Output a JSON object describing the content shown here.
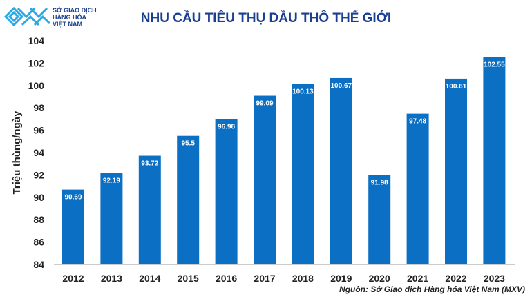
{
  "logo": {
    "lines": [
      "SỞ GIAO DỊCH",
      "HÀNG HÓA",
      "VIỆT NAM"
    ]
  },
  "chart_data": {
    "type": "bar",
    "title": "NHU CẦU TIÊU THỤ DẦU THÔ THẾ GIỚI",
    "xlabel": "",
    "ylabel": "Triệu thùng/ngày",
    "ylim": [
      84,
      104
    ],
    "yticks": [
      84,
      86,
      88,
      90,
      92,
      94,
      96,
      98,
      100,
      102,
      104
    ],
    "categories": [
      "2012",
      "2013",
      "2014",
      "2015",
      "2016",
      "2017",
      "2018",
      "2019",
      "2020",
      "2021",
      "2022",
      "2023"
    ],
    "values": [
      90.69,
      92.19,
      93.72,
      95.5,
      96.98,
      99.09,
      100.13,
      100.67,
      91.98,
      97.48,
      100.61,
      102.55
    ],
    "grid": false,
    "bar_color": "#0b6fc4"
  },
  "source": "Nguồn: Sở Giao dịch Hàng hóa Việt Nam (MXV)"
}
